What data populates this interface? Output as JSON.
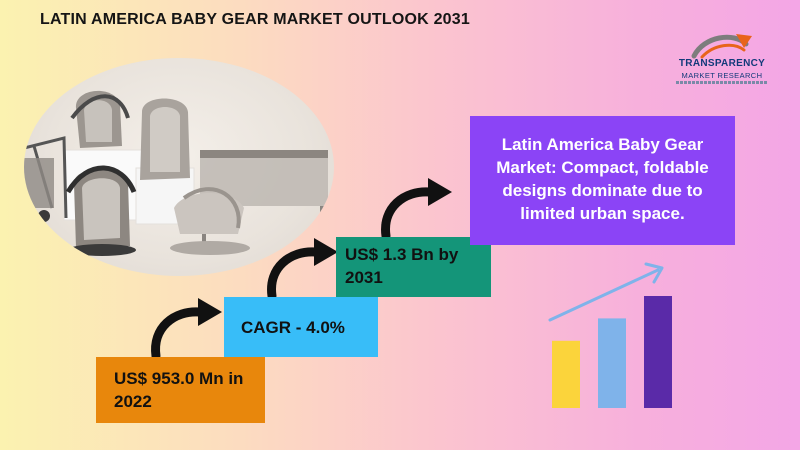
{
  "title": "LATIN AMERICA BABY GEAR MARKET OUTLOOK 2031",
  "logo": {
    "name": "TRANSPARENCY",
    "subtitle": "MARKET RESEARCH",
    "tagline": "reimagine your business with us"
  },
  "steps": {
    "start": "US$ 953.0 Mn in 2022",
    "cagr": "CAGR - 4.0%",
    "end": "US$ 1.3 Bn by 2031"
  },
  "highlight": "Latin America Baby Gear Market: Compact, foldable designs dominate due to limited urban space.",
  "growth_icon": {
    "bar_levels": [
      0.48,
      0.64,
      0.8
    ],
    "bar_colors": [
      "#fbd43b",
      "#7fb3ea",
      "#5a2aa8"
    ],
    "arrow_color": "#7fb3ea"
  },
  "colors": {
    "orange": "#e8870c",
    "sky": "#38bdf8",
    "teal": "#149579",
    "purple": "#8b44f6"
  }
}
